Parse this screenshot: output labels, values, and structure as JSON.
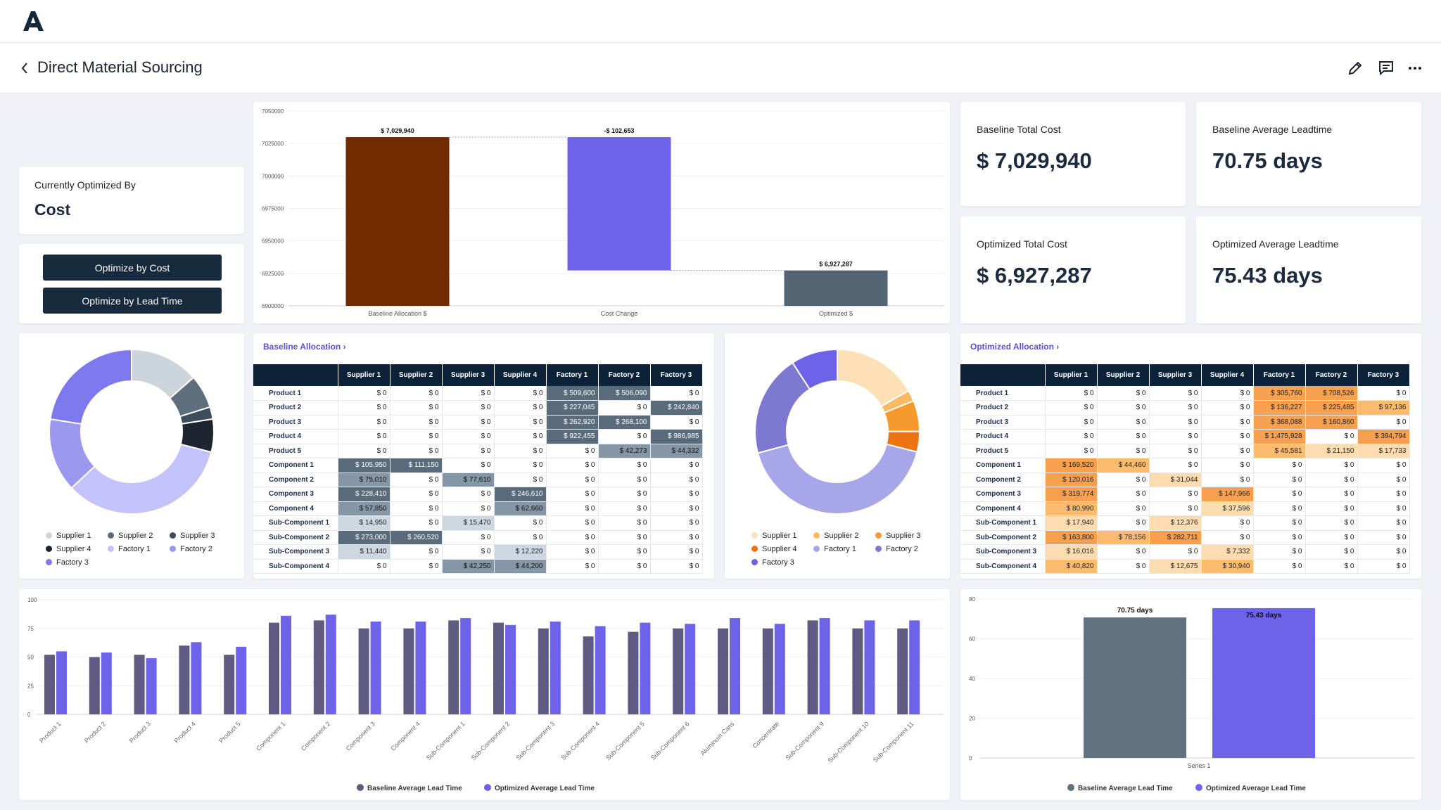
{
  "page": {
    "title": "Direct Material Sourcing"
  },
  "icons": {
    "logo": "brand-logo-icon",
    "back": "chevron-left-icon",
    "edit": "pencil-icon",
    "comment": "comment-icon",
    "more": "more-horizontal-icon"
  },
  "optimized_by": {
    "label": "Currently Optimized By",
    "value": "Cost"
  },
  "buttons": {
    "by_cost": "Optimize by Cost",
    "by_lead_time": "Optimize by Lead Time"
  },
  "kpis": [
    {
      "label": "Baseline Total Cost",
      "value": "$ 7,029,940"
    },
    {
      "label": "Baseline Average Leadtime",
      "value": "70.75 days"
    },
    {
      "label": "Optimized Total Cost",
      "value": "$ 6,927,287"
    },
    {
      "label": "Optimized Average Leadtime",
      "value": "75.43 days"
    }
  ],
  "colors": {
    "navy": "#0c2238",
    "brown": "#722a00",
    "purple": "#6c63e8",
    "slate": "#546473",
    "accent_link": "#5b4fe0"
  },
  "baseline_table": {
    "title": "Baseline Allocation",
    "columns": [
      "Supplier 1",
      "Supplier 2",
      "Supplier 3",
      "Supplier 4",
      "Factory 1",
      "Factory 2",
      "Factory 3"
    ],
    "rows": [
      {
        "label": "Product 1",
        "cells": [
          "$ 0",
          "$ 0",
          "$ 0",
          "$ 0",
          "$ 509,600",
          "$ 506,090",
          "$ 0"
        ],
        "shade": [
          0,
          0,
          0,
          0,
          3,
          3,
          0
        ]
      },
      {
        "label": "Product 2",
        "cells": [
          "$ 0",
          "$ 0",
          "$ 0",
          "$ 0",
          "$ 227,045",
          "$ 0",
          "$ 242,840"
        ],
        "shade": [
          0,
          0,
          0,
          0,
          3,
          0,
          3
        ]
      },
      {
        "label": "Product 3",
        "cells": [
          "$ 0",
          "$ 0",
          "$ 0",
          "$ 0",
          "$ 262,920",
          "$ 268,100",
          "$ 0"
        ],
        "shade": [
          0,
          0,
          0,
          0,
          3,
          3,
          0
        ]
      },
      {
        "label": "Product 4",
        "cells": [
          "$ 0",
          "$ 0",
          "$ 0",
          "$ 0",
          "$ 922,455",
          "$ 0",
          "$ 986,985"
        ],
        "shade": [
          0,
          0,
          0,
          0,
          3,
          0,
          3
        ]
      },
      {
        "label": "Product 5",
        "cells": [
          "$ 0",
          "$ 0",
          "$ 0",
          "$ 0",
          "$ 0",
          "$ 42,273",
          "$ 44,332"
        ],
        "shade": [
          0,
          0,
          0,
          0,
          0,
          2,
          2
        ]
      },
      {
        "label": "Component 1",
        "cells": [
          "$ 105,950",
          "$ 111,150",
          "$ 0",
          "$ 0",
          "$ 0",
          "$ 0",
          "$ 0"
        ],
        "shade": [
          3,
          3,
          0,
          0,
          0,
          0,
          0
        ]
      },
      {
        "label": "Component 2",
        "cells": [
          "$ 75,010",
          "$ 0",
          "$ 77,610",
          "$ 0",
          "$ 0",
          "$ 0",
          "$ 0"
        ],
        "shade": [
          2,
          0,
          2,
          0,
          0,
          0,
          0
        ]
      },
      {
        "label": "Component 3",
        "cells": [
          "$ 228,410",
          "$ 0",
          "$ 0",
          "$ 246,610",
          "$ 0",
          "$ 0",
          "$ 0"
        ],
        "shade": [
          3,
          0,
          0,
          3,
          0,
          0,
          0
        ]
      },
      {
        "label": "Component 4",
        "cells": [
          "$ 57,850",
          "$ 0",
          "$ 0",
          "$ 62,660",
          "$ 0",
          "$ 0",
          "$ 0"
        ],
        "shade": [
          2,
          0,
          0,
          2,
          0,
          0,
          0
        ]
      },
      {
        "label": "Sub-Component 1",
        "cells": [
          "$ 14,950",
          "$ 0",
          "$ 15,470",
          "$ 0",
          "$ 0",
          "$ 0",
          "$ 0"
        ],
        "shade": [
          1,
          0,
          1,
          0,
          0,
          0,
          0
        ]
      },
      {
        "label": "Sub-Component 2",
        "cells": [
          "$ 273,000",
          "$ 260,520",
          "$ 0",
          "$ 0",
          "$ 0",
          "$ 0",
          "$ 0"
        ],
        "shade": [
          3,
          3,
          0,
          0,
          0,
          0,
          0
        ]
      },
      {
        "label": "Sub-Component 3",
        "cells": [
          "$ 11,440",
          "$ 0",
          "$ 0",
          "$ 12,220",
          "$ 0",
          "$ 0",
          "$ 0"
        ],
        "shade": [
          1,
          0,
          0,
          1,
          0,
          0,
          0
        ]
      },
      {
        "label": "Sub-Component 4",
        "cells": [
          "$ 0",
          "$ 0",
          "$ 42,250",
          "$ 44,200",
          "$ 0",
          "$ 0",
          "$ 0"
        ],
        "shade": [
          0,
          0,
          2,
          2,
          0,
          0,
          0
        ]
      }
    ]
  },
  "optimized_table": {
    "title": "Optimized Allocation",
    "columns": [
      "Supplier 1",
      "Supplier 2",
      "Supplier 3",
      "Supplier 4",
      "Factory 1",
      "Factory 2",
      "Factory 3"
    ],
    "rows": [
      {
        "label": "Product 1",
        "cells": [
          "$ 0",
          "$ 0",
          "$ 0",
          "$ 0",
          "$ 305,760",
          "$ 708,526",
          "$ 0"
        ],
        "shade": [
          0,
          0,
          0,
          0,
          3,
          3,
          0
        ]
      },
      {
        "label": "Product 2",
        "cells": [
          "$ 0",
          "$ 0",
          "$ 0",
          "$ 0",
          "$ 136,227",
          "$ 225,485",
          "$ 97,136"
        ],
        "shade": [
          0,
          0,
          0,
          0,
          3,
          3,
          2
        ]
      },
      {
        "label": "Product 3",
        "cells": [
          "$ 0",
          "$ 0",
          "$ 0",
          "$ 0",
          "$ 368,088",
          "$ 160,860",
          "$ 0"
        ],
        "shade": [
          0,
          0,
          0,
          0,
          3,
          3,
          0
        ]
      },
      {
        "label": "Product 4",
        "cells": [
          "$ 0",
          "$ 0",
          "$ 0",
          "$ 0",
          "$ 1,475,928",
          "$ 0",
          "$ 394,794"
        ],
        "shade": [
          0,
          0,
          0,
          0,
          3,
          0,
          3
        ]
      },
      {
        "label": "Product 5",
        "cells": [
          "$ 0",
          "$ 0",
          "$ 0",
          "$ 0",
          "$ 45,581",
          "$ 21,150",
          "$ 17,733"
        ],
        "shade": [
          0,
          0,
          0,
          0,
          2,
          1,
          1
        ]
      },
      {
        "label": "Component 1",
        "cells": [
          "$ 169,520",
          "$ 44,460",
          "$ 0",
          "$ 0",
          "$ 0",
          "$ 0",
          "$ 0"
        ],
        "shade": [
          3,
          2,
          0,
          0,
          0,
          0,
          0
        ]
      },
      {
        "label": "Component 2",
        "cells": [
          "$ 120,016",
          "$ 0",
          "$ 31,044",
          "$ 0",
          "$ 0",
          "$ 0",
          "$ 0"
        ],
        "shade": [
          3,
          0,
          1,
          0,
          0,
          0,
          0
        ]
      },
      {
        "label": "Component 3",
        "cells": [
          "$ 319,774",
          "$ 0",
          "$ 0",
          "$ 147,966",
          "$ 0",
          "$ 0",
          "$ 0"
        ],
        "shade": [
          3,
          0,
          0,
          3,
          0,
          0,
          0
        ]
      },
      {
        "label": "Component 4",
        "cells": [
          "$ 80,990",
          "$ 0",
          "$ 0",
          "$ 37,596",
          "$ 0",
          "$ 0",
          "$ 0"
        ],
        "shade": [
          2,
          0,
          0,
          1,
          0,
          0,
          0
        ]
      },
      {
        "label": "Sub-Component 1",
        "cells": [
          "$ 17,940",
          "$ 0",
          "$ 12,376",
          "$ 0",
          "$ 0",
          "$ 0",
          "$ 0"
        ],
        "shade": [
          1,
          0,
          1,
          0,
          0,
          0,
          0
        ]
      },
      {
        "label": "Sub-Component 2",
        "cells": [
          "$ 163,800",
          "$ 78,156",
          "$ 282,711",
          "$ 0",
          "$ 0",
          "$ 0",
          "$ 0"
        ],
        "shade": [
          3,
          2,
          3,
          0,
          0,
          0,
          0
        ]
      },
      {
        "label": "Sub-Component 3",
        "cells": [
          "$ 16,016",
          "$ 0",
          "$ 0",
          "$ 7,332",
          "$ 0",
          "$ 0",
          "$ 0"
        ],
        "shade": [
          1,
          0,
          0,
          1,
          0,
          0,
          0
        ]
      },
      {
        "label": "Sub-Component 4",
        "cells": [
          "$ 40,820",
          "$ 0",
          "$ 12,675",
          "$ 30,940",
          "$ 0",
          "$ 0",
          "$ 0"
        ],
        "shade": [
          2,
          0,
          1,
          2,
          0,
          0,
          0
        ]
      }
    ]
  },
  "legends": {
    "baseline_donut": [
      "Supplier 1",
      "Supplier 2",
      "Supplier 3",
      "Supplier 4",
      "Factory 1",
      "Factory 2",
      "Factory 3"
    ],
    "optimized_donut": [
      "Supplier 1",
      "Supplier 2",
      "Supplier 3",
      "Supplier 4",
      "Factory 1",
      "Factory 2",
      "Factory 3"
    ],
    "leadtime": [
      "Baseline Average Lead Time",
      "Optimized Average Lead Time"
    ],
    "avg_leadtime": [
      "Baseline Average Lead Time",
      "Optimized Average Lead Time"
    ]
  },
  "chart_data": [
    {
      "type": "bar",
      "subtype": "waterfall",
      "categories": [
        "Baseline Allocation $",
        "Cost Change",
        "Optimized $"
      ],
      "values": [
        7029940,
        -102653,
        6927287
      ],
      "data_labels": [
        "$ 7,029,940",
        "-$ 102,653",
        "$ 6,927,287"
      ],
      "yticks": [
        "7050000",
        "7025000",
        "7000000",
        "6975000",
        "6950000",
        "6925000",
        "6900000"
      ],
      "ylim": [
        6900000,
        7050000
      ],
      "colors": [
        "#722a00",
        "#6c63e8",
        "#546473"
      ],
      "grid": true
    },
    {
      "type": "pie",
      "subtype": "donut",
      "labels": [
        "Supplier 1",
        "Supplier 2",
        "Supplier 3",
        "Supplier 4",
        "Factory 1",
        "Factory 2",
        "Factory 3"
      ],
      "values": [
        766610,
        371670,
        135330,
        365690,
        1922020,
        816463,
        1274157
      ],
      "colors": [
        "#cdd5dc",
        "#5f6e7c",
        "#3d4d5c",
        "#1e2530",
        "#c4c2fa",
        "#9a98ef",
        "#7e78ee"
      ],
      "legend": "bottom"
    },
    {
      "type": "pie",
      "subtype": "donut",
      "labels": [
        "Supplier 1",
        "Supplier 2",
        "Supplier 3",
        "Supplier 4",
        "Factory 1",
        "Factory 2",
        "Factory 3"
      ],
      "values": [
        928876,
        122616,
        338806,
        223834,
        2331584,
        1116021,
        509663
      ],
      "colors": [
        "#fde0b6",
        "#fbb964",
        "#f79a2e",
        "#ee7411",
        "#a7a6e8",
        "#7d79d0",
        "#6c63e8"
      ],
      "legend": "bottom"
    },
    {
      "type": "bar",
      "categories": [
        "Product 1",
        "Product 2",
        "Product 3",
        "Product 4",
        "Product 5",
        "Component 1",
        "Component 2",
        "Component 3",
        "Component 4",
        "Sub-Component 1",
        "Sub-Component 2",
        "Sub-Component 3",
        "Sub-Component 4",
        "Sub-Component 5",
        "Sub-Component 6",
        "Aluminum Cans",
        "Concentrate",
        "Sub-Component 9",
        "Sub-Component 10",
        "Sub-Component 11"
      ],
      "series": [
        {
          "name": "Baseline Average Lead Time",
          "color": "#5e5a82",
          "values": [
            52,
            50,
            52,
            60,
            52,
            80,
            82,
            75,
            75,
            82,
            80,
            75,
            68,
            72,
            75,
            75,
            75,
            82,
            75,
            75
          ]
        },
        {
          "name": "Optimized Average Lead Time",
          "color": "#6c63e8",
          "values": [
            55,
            54,
            49,
            63,
            59,
            86,
            87,
            81,
            81,
            84,
            78,
            81,
            77,
            80,
            79,
            84,
            79,
            84,
            82,
            82
          ]
        }
      ],
      "yticks": [
        "100",
        "75",
        "50",
        "25",
        "0"
      ],
      "ylim": [
        0,
        100
      ],
      "grid": true,
      "legend": "bottom"
    },
    {
      "type": "bar",
      "categories": [
        "Series 1"
      ],
      "series": [
        {
          "name": "Baseline Average Lead Time",
          "color": "#617381",
          "values": [
            70.75
          ],
          "label": "70.75 days"
        },
        {
          "name": "Optimized Average Lead Time",
          "color": "#6c63e8",
          "values": [
            75.43
          ],
          "label": "75.43 days"
        }
      ],
      "yticks": [
        "80",
        "60",
        "40",
        "20",
        "0"
      ],
      "ylim": [
        0,
        80
      ],
      "grid": true,
      "legend": "bottom"
    }
  ]
}
